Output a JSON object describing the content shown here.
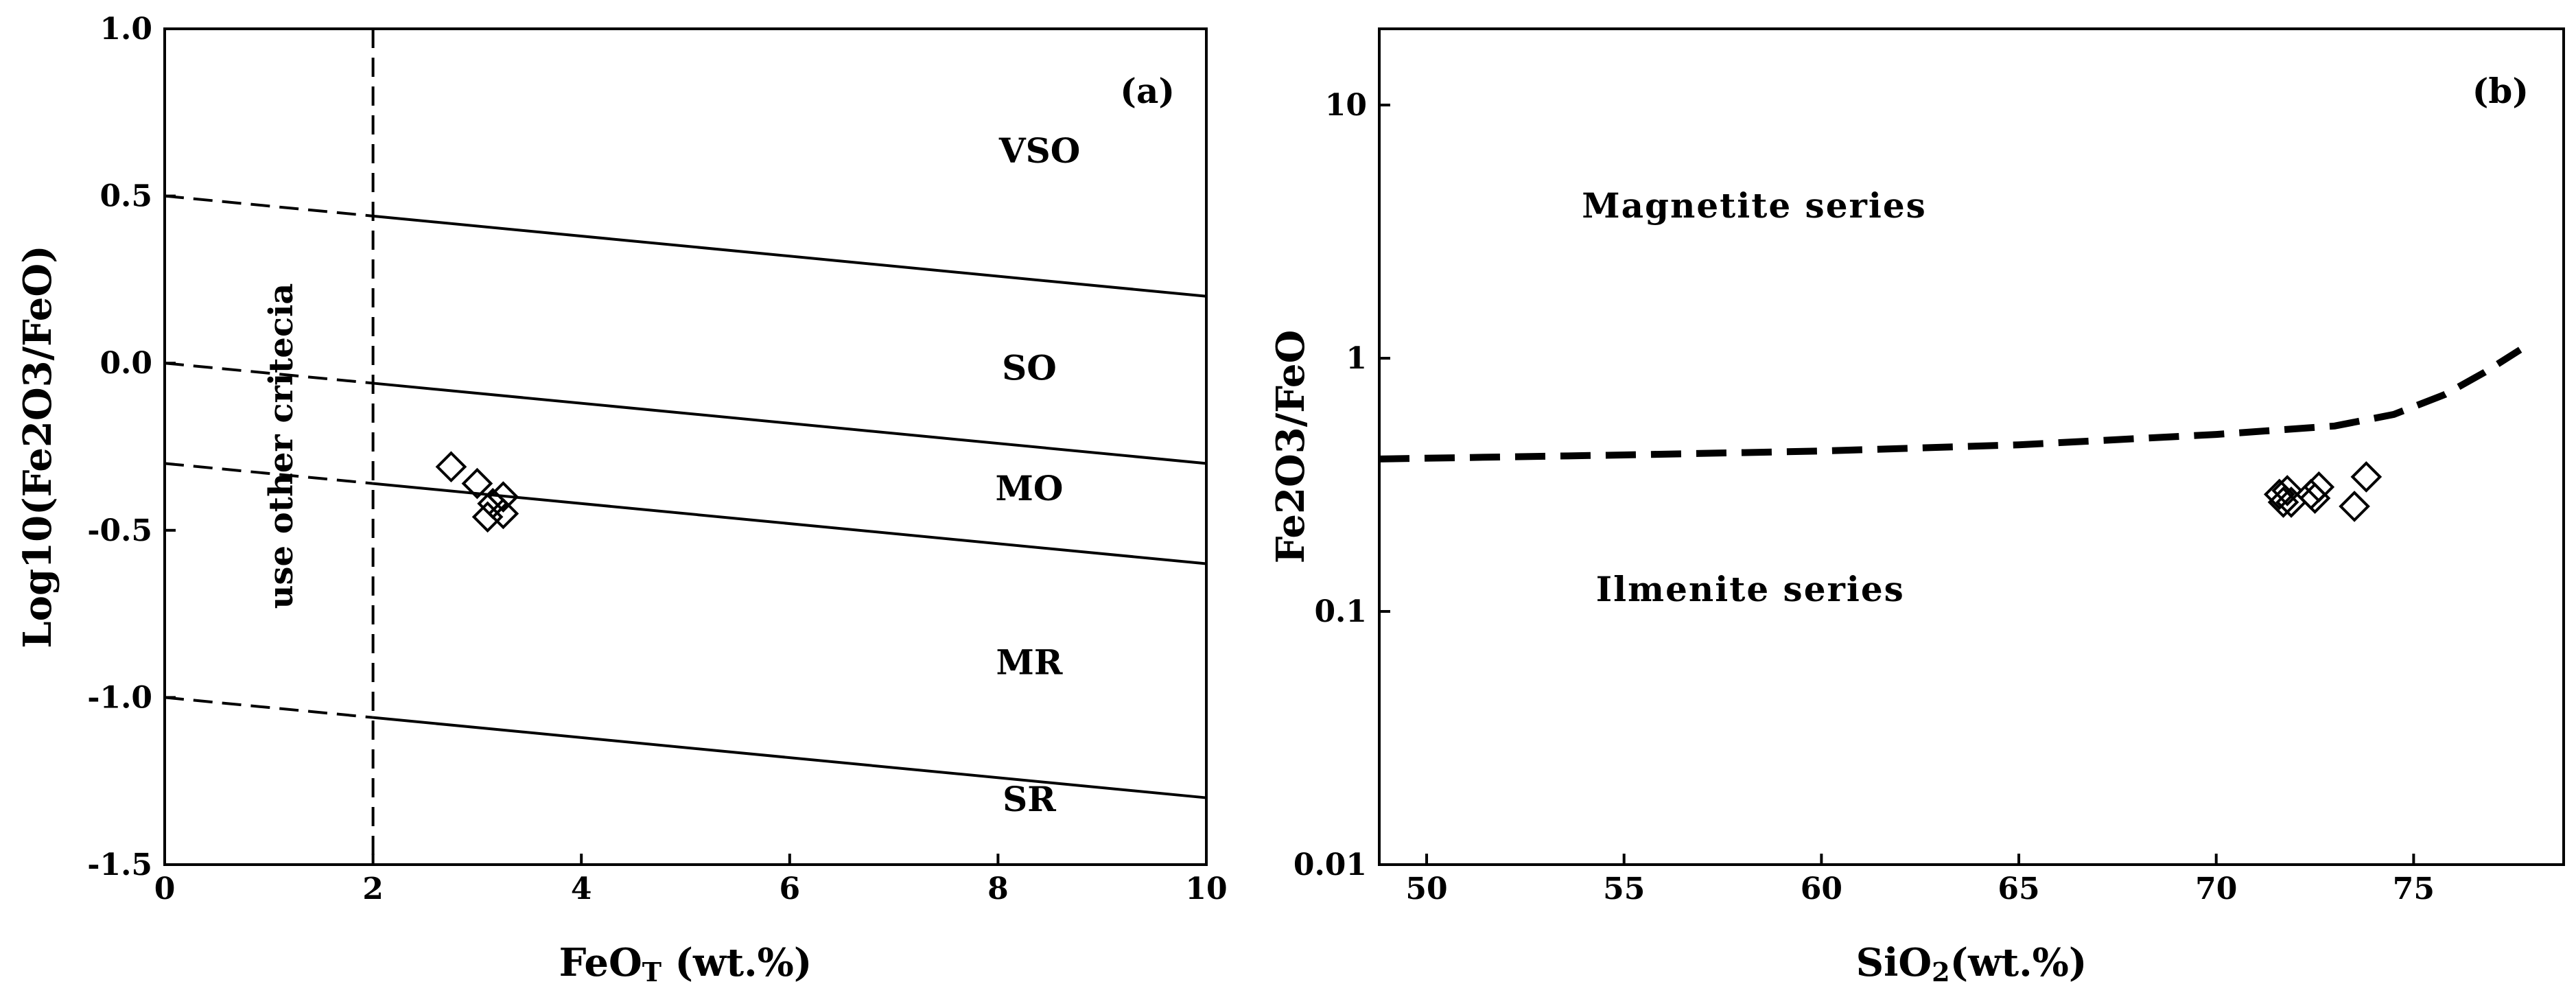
{
  "chart_data": [
    {
      "type": "scatter",
      "panel_label": "(a)",
      "xlabel": "FeO",
      "xlabel_subscript": "T",
      "xlabel_suffix": " (wt.%)",
      "ylabel": "Log10(Fe2O3/FeO)",
      "xlim": [
        0,
        10
      ],
      "ylim": [
        -1.5,
        1.0
      ],
      "x_ticks": [
        0,
        2,
        4,
        6,
        8,
        10
      ],
      "x_tick_labels": [
        "0",
        "2",
        "4",
        "6",
        "8",
        "10"
      ],
      "y_ticks": [
        1.0,
        0.5,
        0.0,
        -0.5,
        -1.0,
        -1.5
      ],
      "y_tick_labels": [
        "1.0",
        "0.5",
        "0.0",
        "-0.5",
        "-1.0",
        "-1.5"
      ],
      "grid": false,
      "boundary_lines": [
        {
          "name": "VSO/SO",
          "x": [
            0,
            10
          ],
          "y": [
            0.5,
            0.2
          ],
          "style": "dashed below FeOT=2, solid above"
        },
        {
          "name": "SO/MO",
          "x": [
            0,
            10
          ],
          "y": [
            0.0,
            -0.3
          ],
          "style": "dashed below FeOT=2, solid above"
        },
        {
          "name": "MO/MR",
          "x": [
            0,
            10
          ],
          "y": [
            -0.3,
            -0.6
          ],
          "style": "dashed below FeOT=2, solid above"
        },
        {
          "name": "MR/SR",
          "x": [
            0,
            10
          ],
          "y": [
            -1.0,
            -1.3
          ],
          "style": "dashed below FeOT=2, solid above"
        }
      ],
      "vertical_line": {
        "x": 2,
        "style": "dashed",
        "text": "use other critecia"
      },
      "regions": [
        {
          "label": "VSO",
          "x": 8.4,
          "y": 0.6
        },
        {
          "label": "SO",
          "x": 8.3,
          "y": -0.05
        },
        {
          "label": "MO",
          "x": 8.3,
          "y": -0.41
        },
        {
          "label": "MR",
          "x": 8.3,
          "y": -0.93
        },
        {
          "label": "SR",
          "x": 8.3,
          "y": -1.34
        }
      ],
      "series": [
        {
          "name": "samples",
          "marker": "diamond-open",
          "points": [
            {
              "x": 2.75,
              "y": -0.31
            },
            {
              "x": 3.0,
              "y": -0.36
            },
            {
              "x": 3.15,
              "y": -0.42
            },
            {
              "x": 3.25,
              "y": -0.4
            },
            {
              "x": 3.1,
              "y": -0.46
            },
            {
              "x": 3.25,
              "y": -0.45
            }
          ]
        }
      ]
    },
    {
      "type": "scatter",
      "panel_label": "(b)",
      "xlabel": "SiO",
      "xlabel_subscript": "2",
      "xlabel_suffix": "(wt.%)",
      "ylabel": "Fe2O3/FeO",
      "y_scale": "log",
      "xlim": [
        48.8,
        78.8
      ],
      "ylim": [
        0.01,
        20
      ],
      "x_ticks": [
        50,
        55,
        60,
        65,
        70,
        75
      ],
      "x_tick_labels": [
        "50",
        "55",
        "60",
        "65",
        "70",
        "75"
      ],
      "y_ticks": [
        10,
        1,
        0.1,
        0.01
      ],
      "y_tick_labels": [
        "10",
        "1",
        "0.1",
        "0.01"
      ],
      "grid": false,
      "boundary_curve": {
        "style": "dashed",
        "x": [
          48.8,
          55,
          60,
          65,
          70,
          73,
          74.5,
          75.8,
          76.8,
          77.7
        ],
        "y": [
          0.4,
          0.415,
          0.43,
          0.455,
          0.5,
          0.54,
          0.6,
          0.72,
          0.88,
          1.08
        ]
      },
      "regions": [
        {
          "label": "Magnetite series",
          "x": 58.3,
          "y": 3.6
        },
        {
          "label": "Ilmenite series",
          "x": 58.2,
          "y": 0.11
        }
      ],
      "series": [
        {
          "name": "samples",
          "marker": "diamond-open",
          "points": [
            {
              "x": 71.6,
              "y": 0.29
            },
            {
              "x": 71.7,
              "y": 0.27
            },
            {
              "x": 71.8,
              "y": 0.3
            },
            {
              "x": 71.9,
              "y": 0.27
            },
            {
              "x": 72.4,
              "y": 0.29
            },
            {
              "x": 72.6,
              "y": 0.31
            },
            {
              "x": 72.5,
              "y": 0.28
            },
            {
              "x": 73.5,
              "y": 0.26
            },
            {
              "x": 73.8,
              "y": 0.34
            }
          ]
        }
      ]
    }
  ]
}
